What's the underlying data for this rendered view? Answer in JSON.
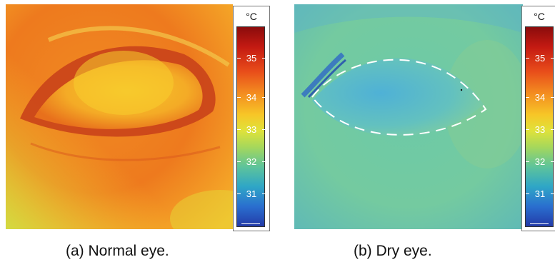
{
  "panels": [
    {
      "caption": "(a)  Normal eye.",
      "scale": {
        "unit": "°C",
        "labels": [
          "35",
          "34",
          "33",
          "32",
          "31"
        ]
      }
    },
    {
      "caption": "(b)  Dry eye.",
      "scale": {
        "unit": "°C",
        "labels": [
          "35",
          "34",
          "33",
          "32",
          "31"
        ]
      }
    }
  ]
}
